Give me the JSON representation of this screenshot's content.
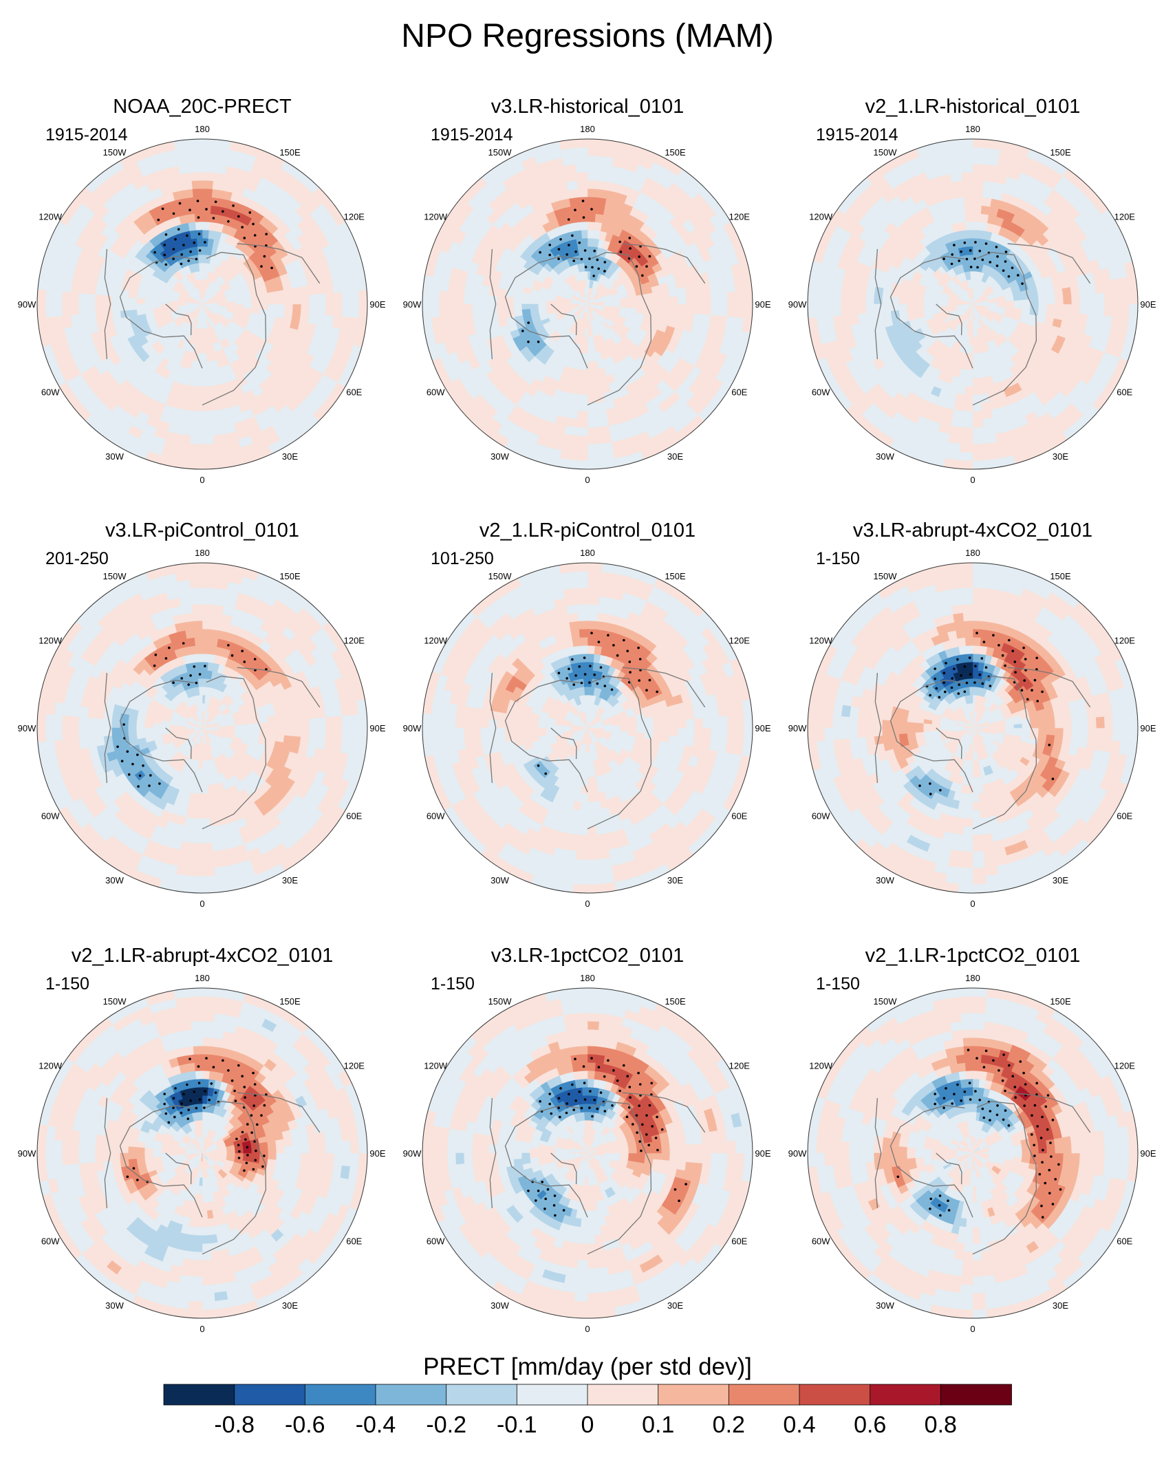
{
  "chart_data": {
    "type": "heatmap",
    "projection": "north-polar-stereographic",
    "title": "NPO Regressions (MAM)",
    "variable_label": "PRECT [mm/day (per std dev)]",
    "longitude_labels": [
      "180",
      "150E",
      "120E",
      "90E",
      "60E",
      "30E",
      "0",
      "30W",
      "60W",
      "90W",
      "120W",
      "150W"
    ],
    "colorbar": {
      "levels": [
        "-0.8",
        "-0.6",
        "-0.4",
        "-0.2",
        "-0.1",
        "0",
        "0.1",
        "0.2",
        "0.4",
        "0.6",
        "0.8"
      ],
      "colors": [
        "#0b2b57",
        "#1f5ba6",
        "#3d87c2",
        "#7eb6da",
        "#b7d6ea",
        "#e3edf3",
        "#f9e3dc",
        "#f5b89f",
        "#e9876c",
        "#cc4f45",
        "#a8182a",
        "#6b0015"
      ]
    },
    "panels": [
      {
        "name": "NOAA_20C-PRECT",
        "period": "1915-2014",
        "intensity": 0.85,
        "pacific_shift": 0,
        "features": [
          {
            "lon": 195,
            "lat": 38,
            "v": -0.6
          },
          {
            "lon": 205,
            "lat": 32,
            "v": -0.5
          },
          {
            "lon": 165,
            "lat": 50,
            "v": 0.4
          },
          {
            "lon": 190,
            "lat": 52,
            "v": 0.35
          },
          {
            "lon": 130,
            "lat": 42,
            "v": 0.3
          },
          {
            "lon": 300,
            "lat": 40,
            "v": -0.15
          },
          {
            "lon": 60,
            "lat": 55,
            "v": 0.1
          }
        ]
      },
      {
        "name": "v3.LR-historical_0101",
        "period": "1915-2014",
        "intensity": 0.9,
        "pacific_shift": 0,
        "features": [
          {
            "lon": 205,
            "lat": 35,
            "v": -0.55
          },
          {
            "lon": 165,
            "lat": 25,
            "v": -0.45
          },
          {
            "lon": 140,
            "lat": 35,
            "v": 0.6
          },
          {
            "lon": 185,
            "lat": 50,
            "v": 0.35
          },
          {
            "lon": 300,
            "lat": 35,
            "v": -0.3
          },
          {
            "lon": 70,
            "lat": 45,
            "v": 0.1
          }
        ]
      },
      {
        "name": "v2_1.LR-historical_0101",
        "period": "1915-2014",
        "intensity": 0.8,
        "pacific_shift": 0,
        "features": [
          {
            "lon": 195,
            "lat": 30,
            "v": -0.45
          },
          {
            "lon": 160,
            "lat": 25,
            "v": -0.35
          },
          {
            "lon": 150,
            "lat": 50,
            "v": 0.25
          },
          {
            "lon": 120,
            "lat": 30,
            "v": -0.3
          },
          {
            "lon": 300,
            "lat": 45,
            "v": -0.2
          },
          {
            "lon": 60,
            "lat": 50,
            "v": 0.15
          }
        ]
      },
      {
        "name": "v3.LR-piControl_0101",
        "period": "201-250",
        "intensity": 0.85,
        "pacific_shift": 0,
        "features": [
          {
            "lon": 190,
            "lat": 30,
            "v": -0.45
          },
          {
            "lon": 200,
            "lat": 45,
            "v": 0.35
          },
          {
            "lon": 145,
            "lat": 45,
            "v": 0.35
          },
          {
            "lon": 310,
            "lat": 40,
            "v": -0.35
          },
          {
            "lon": 280,
            "lat": 45,
            "v": -0.25
          },
          {
            "lon": 60,
            "lat": 50,
            "v": 0.2
          }
        ]
      },
      {
        "name": "v2_1.LR-piControl_0101",
        "period": "101-250",
        "intensity": 0.85,
        "pacific_shift": 0,
        "features": [
          {
            "lon": 190,
            "lat": 32,
            "v": -0.5
          },
          {
            "lon": 165,
            "lat": 25,
            "v": -0.35
          },
          {
            "lon": 165,
            "lat": 50,
            "v": 0.35
          },
          {
            "lon": 135,
            "lat": 40,
            "v": 0.4
          },
          {
            "lon": 240,
            "lat": 45,
            "v": 0.2
          },
          {
            "lon": 320,
            "lat": 35,
            "v": -0.2
          }
        ]
      },
      {
        "name": "v3.LR-abrupt-4xCO2_0101",
        "period": "1-150",
        "intensity": 1.0,
        "pacific_shift": 0,
        "features": [
          {
            "lon": 200,
            "lat": 30,
            "v": -0.7
          },
          {
            "lon": 175,
            "lat": 32,
            "v": -0.45
          },
          {
            "lon": 160,
            "lat": 50,
            "v": 0.35
          },
          {
            "lon": 135,
            "lat": 38,
            "v": 0.5
          },
          {
            "lon": 280,
            "lat": 40,
            "v": 0.3
          },
          {
            "lon": 315,
            "lat": 40,
            "v": -0.3
          },
          {
            "lon": 60,
            "lat": 45,
            "v": 0.25
          }
        ]
      },
      {
        "name": "v2_1.LR-abrupt-4xCO2_0101",
        "period": "1-150",
        "intensity": 1.0,
        "pacific_shift": 0,
        "features": [
          {
            "lon": 200,
            "lat": 30,
            "v": -0.7
          },
          {
            "lon": 175,
            "lat": 35,
            "v": -0.5
          },
          {
            "lon": 165,
            "lat": 48,
            "v": 0.4
          },
          {
            "lon": 140,
            "lat": 38,
            "v": 0.45
          },
          {
            "lon": 95,
            "lat": 25,
            "v": 0.6
          },
          {
            "lon": 290,
            "lat": 40,
            "v": 0.25
          },
          {
            "lon": 330,
            "lat": 50,
            "v": -0.2
          }
        ]
      },
      {
        "name": "v3.LR-1pctCO2_0101",
        "period": "1-150",
        "intensity": 1.0,
        "pacific_shift": 0,
        "features": [
          {
            "lon": 200,
            "lat": 32,
            "v": -0.65
          },
          {
            "lon": 165,
            "lat": 30,
            "v": -0.45
          },
          {
            "lon": 170,
            "lat": 50,
            "v": 0.45
          },
          {
            "lon": 135,
            "lat": 38,
            "v": 0.6
          },
          {
            "lon": 100,
            "lat": 30,
            "v": 0.3
          },
          {
            "lon": 315,
            "lat": 35,
            "v": -0.4
          },
          {
            "lon": 60,
            "lat": 55,
            "v": 0.2
          }
        ]
      },
      {
        "name": "v2_1.LR-1pctCO2_0101",
        "period": "1-150",
        "intensity": 1.0,
        "pacific_shift": 0,
        "features": [
          {
            "lon": 200,
            "lat": 35,
            "v": -0.5
          },
          {
            "lon": 150,
            "lat": 28,
            "v": -0.45
          },
          {
            "lon": 165,
            "lat": 52,
            "v": 0.45
          },
          {
            "lon": 135,
            "lat": 40,
            "v": 0.6
          },
          {
            "lon": 90,
            "lat": 40,
            "v": 0.35
          },
          {
            "lon": 290,
            "lat": 40,
            "v": 0.3
          },
          {
            "lon": 320,
            "lat": 35,
            "v": -0.45
          },
          {
            "lon": 60,
            "lat": 50,
            "v": 0.25
          }
        ]
      }
    ]
  }
}
